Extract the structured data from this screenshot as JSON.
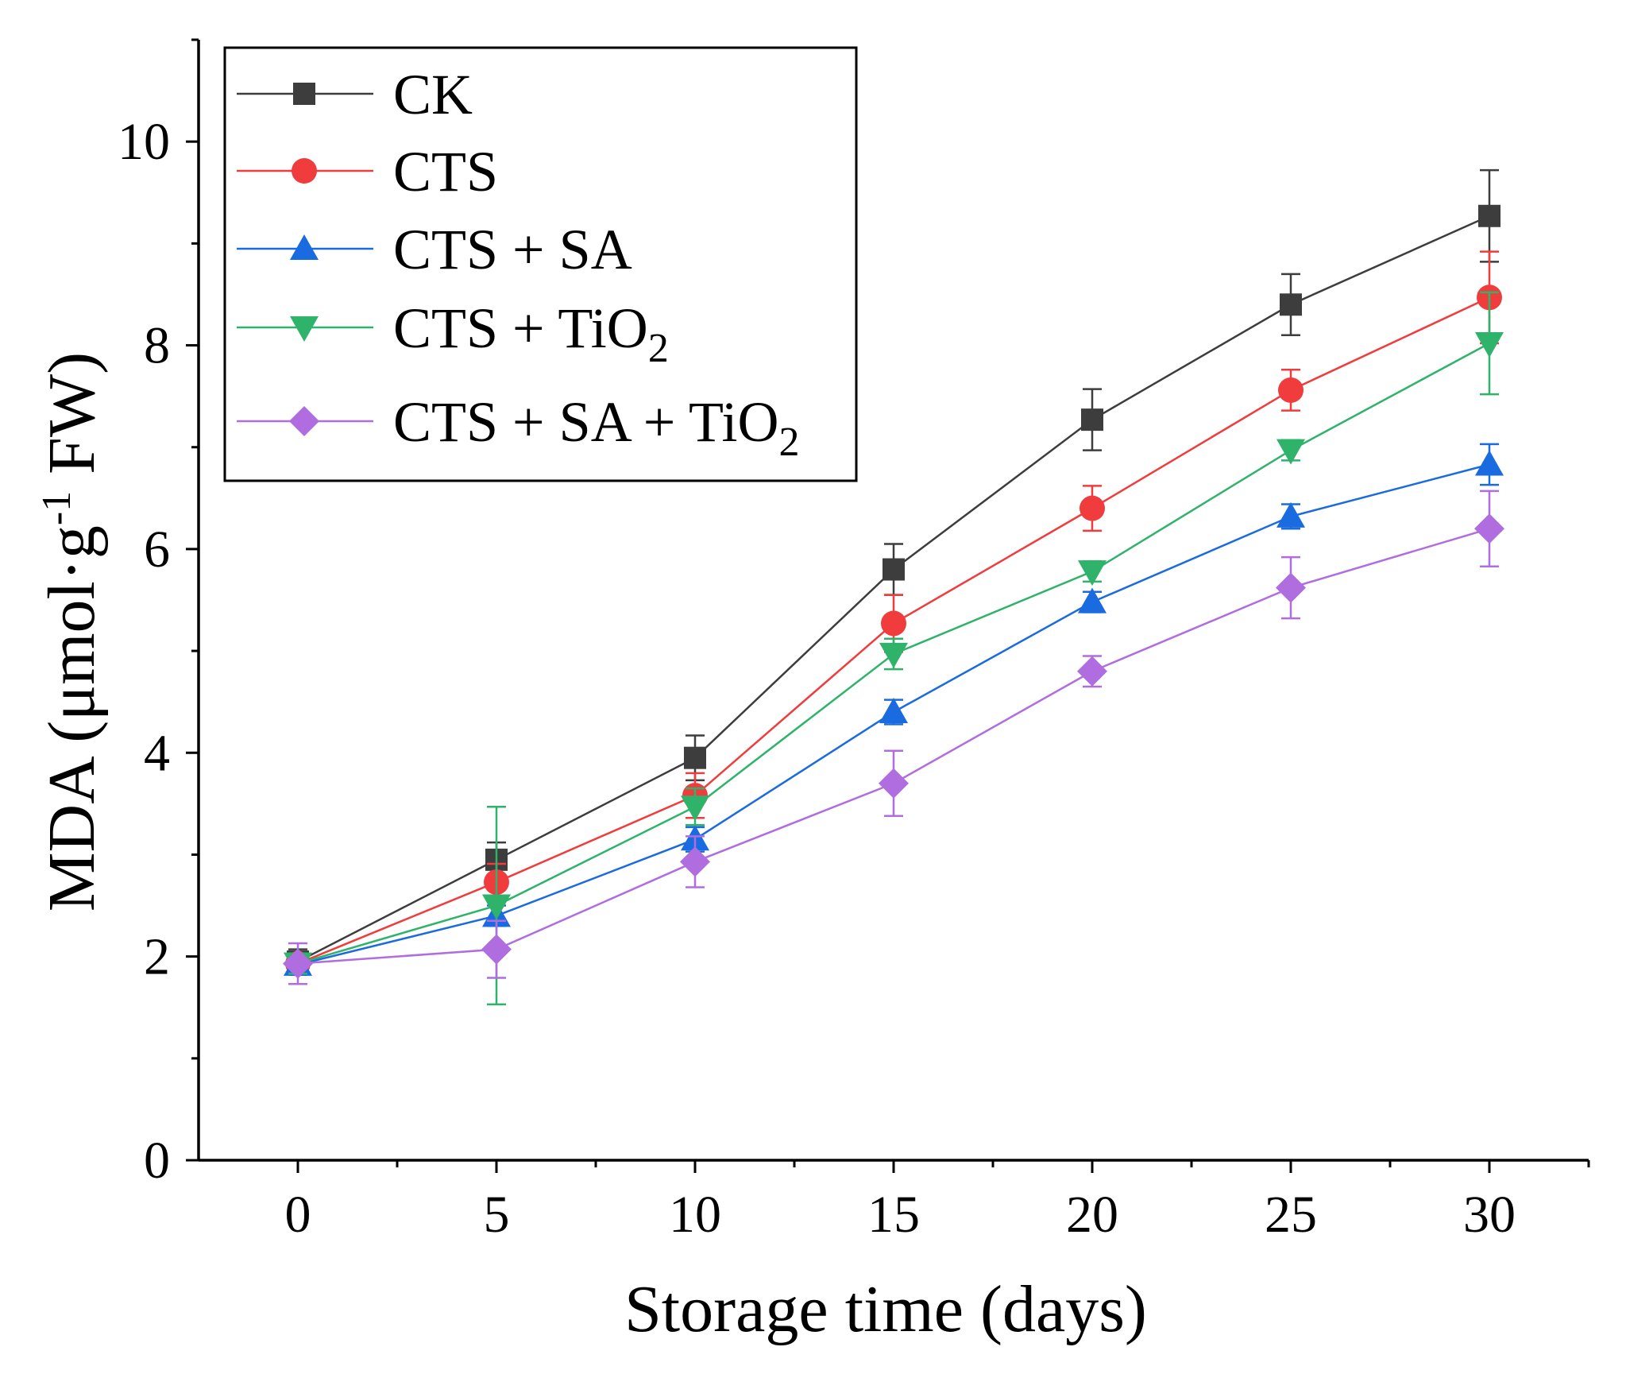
{
  "chart_data": {
    "type": "line",
    "title": "",
    "xlabel": "Storage time (days)",
    "ylabel": {
      "prefix": "MDA (μmol·g",
      "superscript": "-1",
      "suffix": " FW)"
    },
    "x": [
      0,
      5,
      10,
      15,
      20,
      25,
      30
    ],
    "xlim": [
      -2.5,
      32.5
    ],
    "ylim": [
      0,
      11
    ],
    "xticks": [
      0,
      5,
      10,
      15,
      20,
      25,
      30
    ],
    "xtick_labels": [
      "0",
      "5",
      "10",
      "15",
      "20",
      "25",
      "30"
    ],
    "yticks": [
      0,
      2,
      4,
      6,
      8,
      10
    ],
    "ytick_labels": [
      "0",
      "2",
      "4",
      "6",
      "8",
      "10"
    ],
    "grid": false,
    "legend_position": "top-left",
    "series": [
      {
        "name": "CK",
        "label": {
          "main": "CK",
          "sub": ""
        },
        "color": "#3d3d3d",
        "marker": "square",
        "values": [
          1.95,
          2.95,
          3.95,
          5.8,
          7.27,
          8.4,
          9.27
        ],
        "errors": [
          0.12,
          0.17,
          0.22,
          0.25,
          0.3,
          0.3,
          0.45
        ]
      },
      {
        "name": "CTS",
        "label": {
          "main": "CTS",
          "sub": ""
        },
        "color": "#f03c3c",
        "marker": "circle",
        "values": [
          1.93,
          2.73,
          3.58,
          5.27,
          6.4,
          7.56,
          8.47
        ],
        "errors": [
          0.1,
          0.18,
          0.22,
          0.28,
          0.22,
          0.2,
          0.45
        ]
      },
      {
        "name": "CTS + SA",
        "label": {
          "main": "CTS + SA",
          "sub": ""
        },
        "color": "#1a6be0",
        "marker": "triangle-up",
        "values": [
          1.92,
          2.4,
          3.15,
          4.4,
          5.48,
          6.32,
          6.83
        ],
        "errors": [
          0.1,
          0.1,
          0.12,
          0.12,
          0.1,
          0.12,
          0.2
        ]
      },
      {
        "name": "CTS + TiO2",
        "label": {
          "main": "CTS + TiO",
          "sub": "2"
        },
        "color": "#2fb36a",
        "marker": "triangle-down",
        "values": [
          1.93,
          2.5,
          3.47,
          4.97,
          5.78,
          6.97,
          8.02
        ],
        "errors": [
          0.1,
          0.97,
          0.18,
          0.15,
          0.1,
          0.1,
          0.5
        ]
      },
      {
        "name": "CTS + SA + TiO2",
        "label": {
          "main": "CTS + SA + TiO",
          "sub": "2"
        },
        "color": "#b06de0",
        "marker": "diamond",
        "values": [
          1.93,
          2.07,
          2.93,
          3.7,
          4.8,
          5.62,
          6.2
        ],
        "errors": [
          0.2,
          0.28,
          0.25,
          0.32,
          0.15,
          0.3,
          0.37
        ]
      }
    ]
  }
}
